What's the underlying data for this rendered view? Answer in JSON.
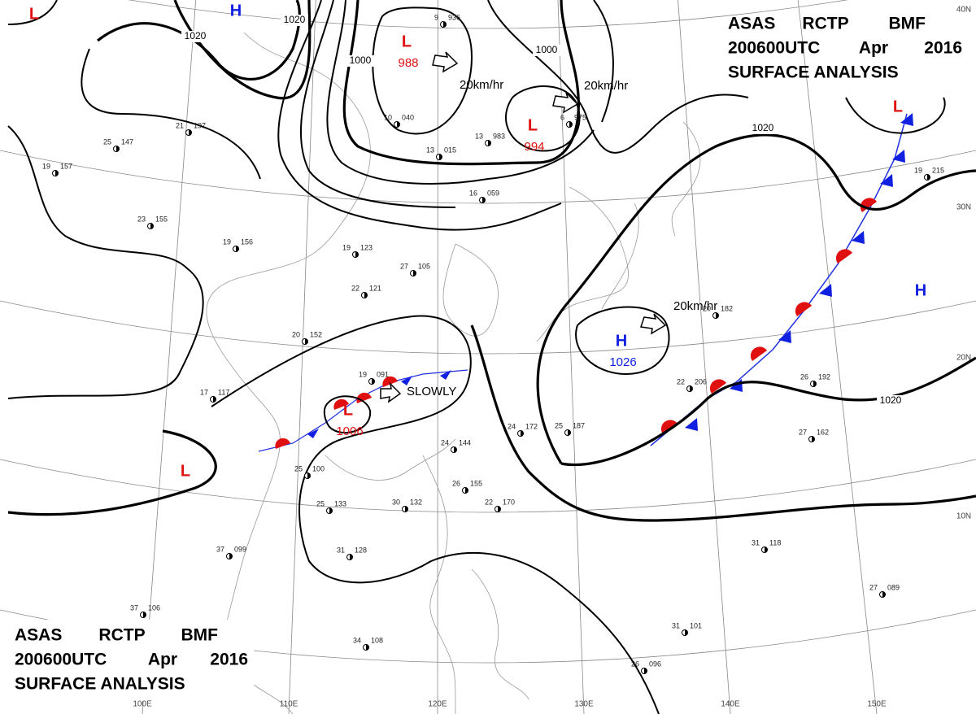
{
  "header": {
    "line1": [
      "ASAS",
      "RCTP",
      "BMF"
    ],
    "line2": [
      "200600UTC",
      "Apr",
      "2016"
    ],
    "line3": "SURFACE ANALYSIS"
  },
  "pressure_centers": [
    {
      "symbol": "L",
      "value": 988
    },
    {
      "symbol": "L",
      "value": 994
    },
    {
      "symbol": "H",
      "value": 1026
    },
    {
      "symbol": "L",
      "value": 1006
    },
    {
      "symbol": "L"
    },
    {
      "symbol": "H"
    },
    {
      "symbol": "L"
    },
    {
      "symbol": "H"
    },
    {
      "symbol": "L"
    }
  ],
  "isobar_labels": [
    1020,
    1020,
    1000,
    1000,
    1020,
    1020
  ],
  "motion_labels": [
    "20km/hr",
    "20km/hr",
    "20km/hr",
    "SLOWLY"
  ],
  "latitude_labels": [
    "40N",
    "30N",
    "20N",
    "10N"
  ],
  "longitude_labels": [
    "100E",
    "110E",
    "120E",
    "130E",
    "140E",
    "150E"
  ],
  "stations": [
    {
      "temp": 9,
      "pressure": "936"
    },
    {
      "temp": 10,
      "pressure": "040"
    },
    {
      "temp": 13,
      "pressure": "983"
    },
    {
      "temp": 6,
      "pressure": "975"
    },
    {
      "temp": 13,
      "pressure": "015"
    },
    {
      "temp": 16,
      "pressure": "059"
    },
    {
      "temp": 21,
      "pressure": "197"
    },
    {
      "temp": 25,
      "pressure": "147"
    },
    {
      "temp": 19,
      "pressure": "157"
    },
    {
      "temp": 23,
      "pressure": "155"
    },
    {
      "temp": 19,
      "pressure": "156"
    },
    {
      "temp": 19,
      "pressure": "123"
    },
    {
      "temp": 27,
      "pressure": "105"
    },
    {
      "temp": 22,
      "pressure": "121"
    },
    {
      "temp": 20,
      "pressure": "152"
    },
    {
      "temp": 19,
      "pressure": "091"
    },
    {
      "temp": 17,
      "pressure": "117"
    },
    {
      "temp": 24,
      "pressure": "144"
    },
    {
      "temp": 26,
      "pressure": "155"
    },
    {
      "temp": 30,
      "pressure": "132"
    },
    {
      "temp": 22,
      "pressure": "170"
    },
    {
      "temp": 25,
      "pressure": "100"
    },
    {
      "temp": 25,
      "pressure": "133"
    },
    {
      "temp": 37,
      "pressure": "099"
    },
    {
      "temp": 31,
      "pressure": "128"
    },
    {
      "temp": 37,
      "pressure": "106"
    },
    {
      "temp": 34,
      "pressure": "108"
    },
    {
      "temp": 24,
      "pressure": "172"
    },
    {
      "temp": 25,
      "pressure": "187"
    },
    {
      "temp": 22,
      "pressure": "206"
    },
    {
      "temp": 26,
      "pressure": "192"
    },
    {
      "temp": 27,
      "pressure": "162"
    },
    {
      "temp": 31,
      "pressure": "118"
    },
    {
      "temp": 27,
      "pressure": "089"
    },
    {
      "temp": 31,
      "pressure": "101"
    },
    {
      "temp": 26,
      "pressure": "096"
    },
    {
      "temp": 19,
      "pressure": "215"
    },
    {
      "temp": 20,
      "pressure": "182"
    }
  ]
}
